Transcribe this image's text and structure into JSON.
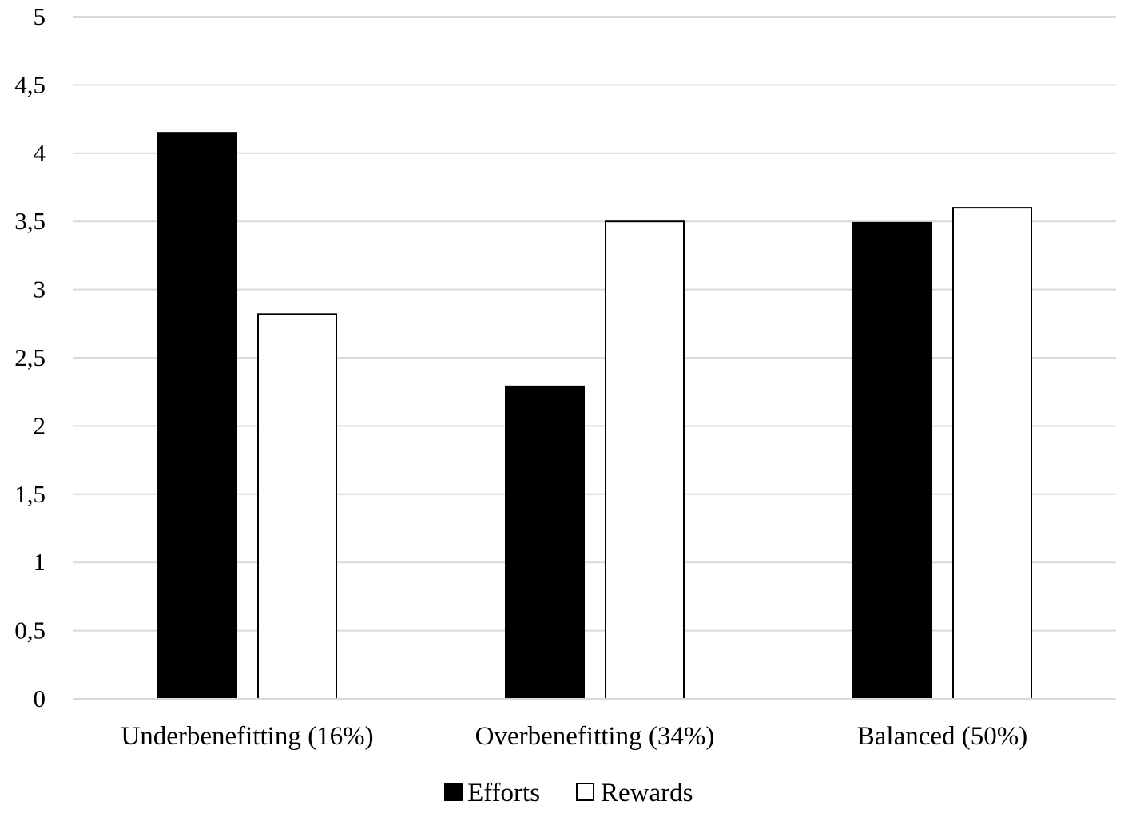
{
  "chart_data": {
    "type": "bar",
    "title": "",
    "xlabel": "",
    "ylabel": "",
    "ylim": [
      0,
      5
    ],
    "yticks": [
      0,
      0.5,
      1,
      1.5,
      2,
      2.5,
      3,
      3.5,
      4,
      4.5,
      5
    ],
    "ytick_labels": [
      "0",
      "0,5",
      "1",
      "1,5",
      "2",
      "2,5",
      "3",
      "3,5",
      "4",
      "4,5",
      "5"
    ],
    "grid": true,
    "legend_position": "bottom-center",
    "categories": [
      "Underbenefitting (16%)",
      "Overbenefitting (34%)",
      "Balanced (50%)"
    ],
    "series": [
      {
        "name": "Efforts",
        "color": "#000000",
        "values": [
          4.15,
          2.29,
          3.49
        ]
      },
      {
        "name": "Rewards",
        "color": "#ffffff",
        "values": [
          2.82,
          3.5,
          3.6
        ]
      }
    ]
  }
}
